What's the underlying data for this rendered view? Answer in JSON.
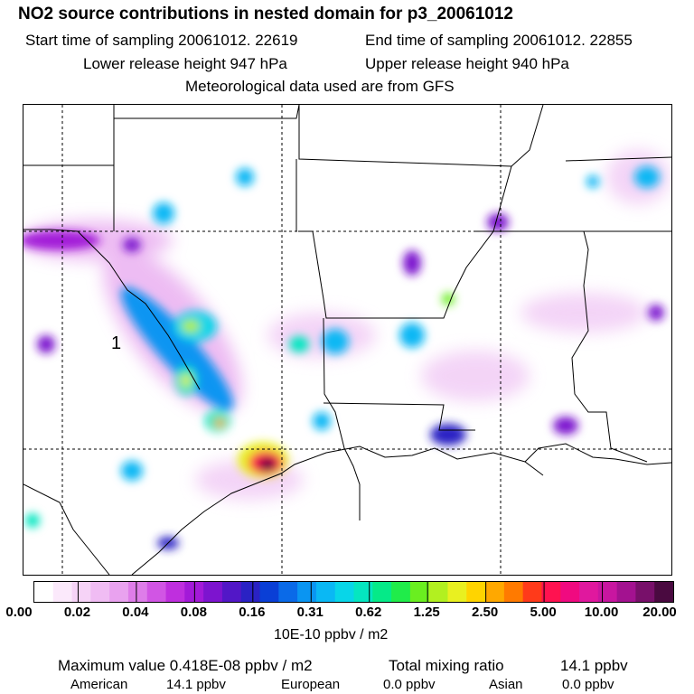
{
  "title": "NO2 source contributions in nested domain for p3_20061012",
  "header": {
    "start_time": "Start time of sampling 20061012. 22619",
    "end_time": "End time of sampling 20061012. 22855",
    "lower_release": "Lower release height  947 hPa",
    "upper_release": "Upper release height  940 hPa",
    "met_data": "Meteorological data used are from GFS"
  },
  "map": {
    "site_label": "1"
  },
  "colorbar": {
    "colors": [
      "#ffffff",
      "#fbe9fb",
      "#f6d3f7",
      "#f0bcf3",
      "#e9a2ef",
      "#de7de9",
      "#d155e4",
      "#bf2fde",
      "#a31ad8",
      "#7d14cf",
      "#5217c7",
      "#2a22c4",
      "#0a3fd6",
      "#0a6ae8",
      "#0a95f2",
      "#0ab8f4",
      "#08d6e8",
      "#05e6c0",
      "#05ea88",
      "#20ec4a",
      "#6aee20",
      "#b2f020",
      "#e9f020",
      "#ffd400",
      "#ffa800",
      "#ff7a00",
      "#ff3a1a",
      "#ff1250",
      "#f00a80",
      "#e0189e",
      "#c816a0",
      "#a31290",
      "#78106a",
      "#4a0a40"
    ],
    "tick_labels": [
      "0.00",
      "0.02",
      "0.04",
      "0.08",
      "0.16",
      "0.31",
      "0.62",
      "1.25",
      "2.50",
      "5.00",
      "10.00",
      "20.00"
    ],
    "units": "10E-10 ppbv / m2"
  },
  "footer": {
    "max_value": "Maximum value  0.418E-08 ppbv / m2",
    "total_label": "Total mixing ratio",
    "total_value": "14.1 ppbv",
    "american_label": "American",
    "american_value": "14.1 ppbv",
    "european_label": "European",
    "european_value": "0.0 ppbv",
    "asian_label": "Asian",
    "asian_value": "0.0 ppbv"
  }
}
